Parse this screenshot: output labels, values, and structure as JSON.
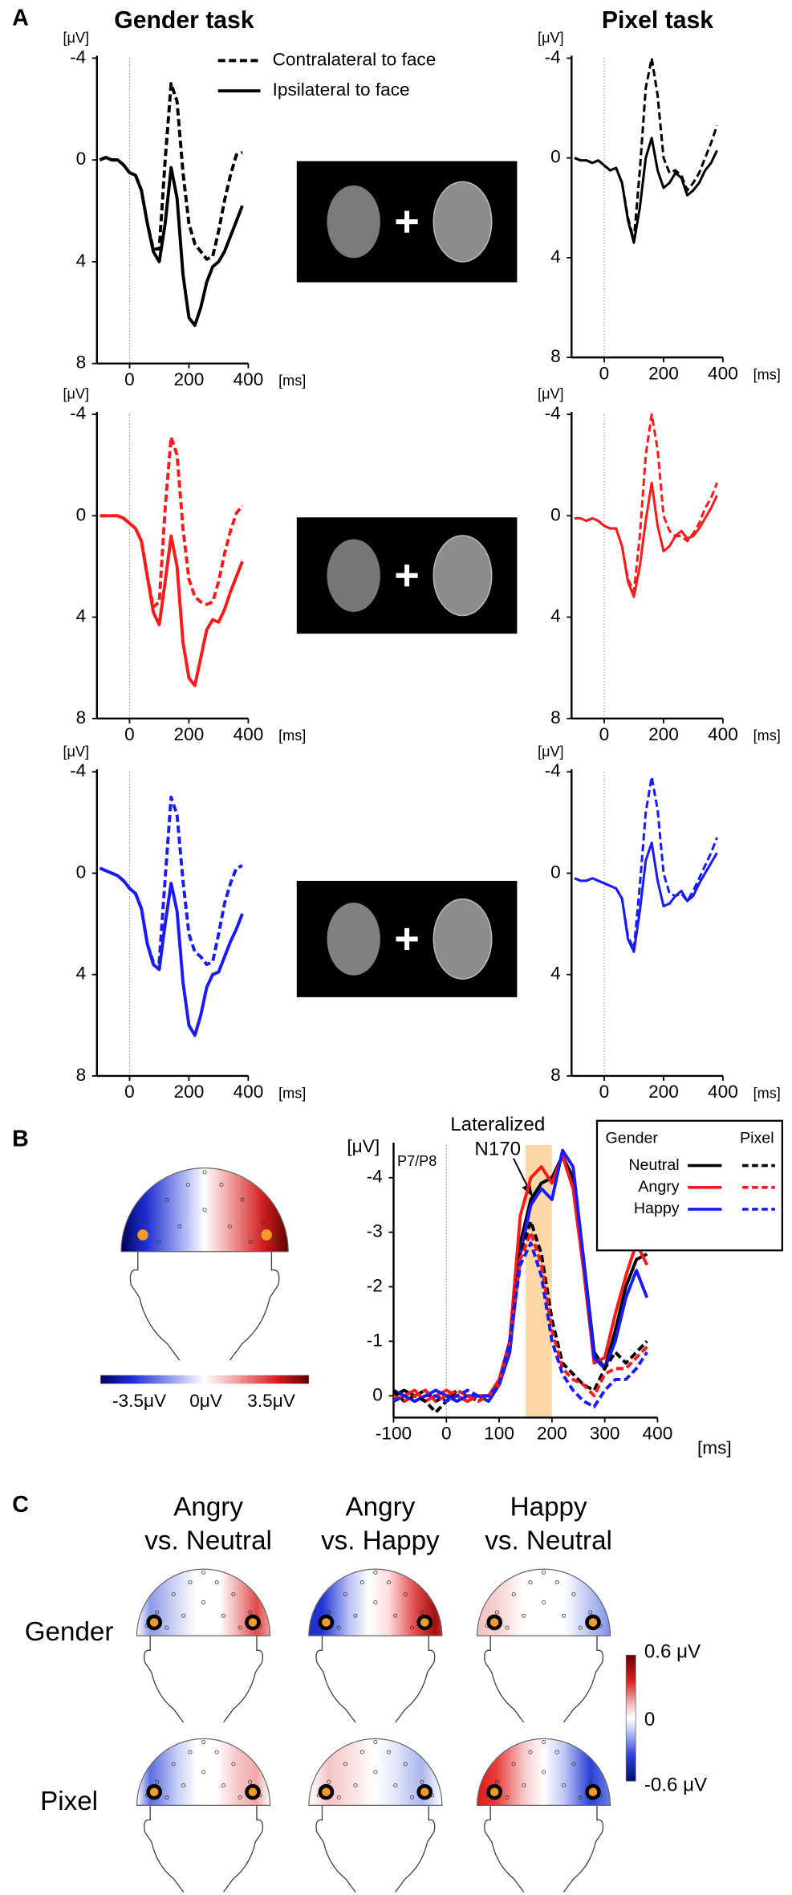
{
  "figure": {
    "panel_labels": [
      "A",
      "B",
      "C"
    ],
    "column_titles": [
      "Gender task",
      "Pixel task"
    ]
  },
  "chart_data": [
    {
      "type": "line",
      "y_label": "[μV]",
      "x_label": "[ms]",
      "y_inverted": true,
      "zero_line": true,
      "x": [
        -100,
        -80,
        -60,
        -40,
        -20,
        0,
        20,
        40,
        60,
        80,
        100,
        120,
        140,
        160,
        180,
        200,
        220,
        240,
        260,
        280,
        300,
        320,
        340,
        360,
        380
      ],
      "xlim": [
        -110,
        400
      ],
      "xticks": [
        0,
        200,
        400
      ],
      "ylim": [
        -4,
        8
      ],
      "yticks": [
        -4,
        0,
        4,
        8
      ],
      "series": [
        {
          "name": "Contralateral to face",
          "color": "#000000",
          "style": "dashed",
          "values": [
            0,
            -0.1,
            0,
            0,
            0.2,
            0.5,
            0.6,
            1.2,
            2.5,
            3.5,
            3.5,
            0,
            -3,
            -2.3,
            0.5,
            2.5,
            3.3,
            3.6,
            3.9,
            3.8,
            2.8,
            1.6,
            0.6,
            -0.2,
            -0.3
          ]
        },
        {
          "name": "Ipsilateral to face",
          "color": "#000000",
          "style": "solid",
          "values": [
            0,
            -0.1,
            0,
            0,
            0.2,
            0.5,
            0.6,
            1.2,
            2.5,
            3.6,
            4,
            2.5,
            0.3,
            1.5,
            4.5,
            6.2,
            6.5,
            5.8,
            4.8,
            4.2,
            4,
            3.6,
            3,
            2.4,
            1.8
          ]
        }
      ]
    },
    {
      "type": "line",
      "y_label": "[μV]",
      "x_label": "[ms]",
      "y_inverted": true,
      "zero_line": true,
      "x": [
        -100,
        -80,
        -60,
        -40,
        -20,
        0,
        20,
        40,
        60,
        80,
        100,
        120,
        140,
        160,
        180,
        200,
        220,
        240,
        260,
        280,
        300,
        320,
        340,
        360,
        380
      ],
      "xlim": [
        -110,
        400
      ],
      "xticks": [
        0,
        200,
        400
      ],
      "ylim": [
        -4,
        8
      ],
      "yticks": [
        -4,
        0,
        4,
        8
      ],
      "series": [
        {
          "color": "#000000",
          "style": "dashed",
          "values": [
            0,
            0.1,
            0.1,
            0.2,
            0.1,
            0.3,
            0.5,
            0.4,
            1,
            2.4,
            3.3,
            0.5,
            -2.8,
            -4,
            -2.5,
            0,
            0.6,
            0.5,
            0.7,
            1.3,
            1,
            0.6,
            0,
            -0.6,
            -1.3
          ]
        },
        {
          "color": "#000000",
          "style": "solid",
          "values": [
            0,
            0.1,
            0.1,
            0.2,
            0.1,
            0.3,
            0.5,
            0.4,
            1,
            2.5,
            3.4,
            2,
            0,
            -0.8,
            0.5,
            1.2,
            1,
            0.6,
            0.8,
            1.5,
            1.3,
            1,
            0.5,
            0.2,
            -0.3
          ]
        }
      ]
    },
    {
      "type": "line",
      "y_label": "[μV]",
      "x_label": "[ms]",
      "y_inverted": true,
      "zero_line": true,
      "x": [
        -100,
        -80,
        -60,
        -40,
        -20,
        0,
        20,
        40,
        60,
        80,
        100,
        120,
        140,
        160,
        180,
        200,
        220,
        240,
        260,
        280,
        300,
        320,
        340,
        360,
        380
      ],
      "xlim": [
        -110,
        400
      ],
      "xticks": [
        0,
        200,
        400
      ],
      "ylim": [
        -4,
        8
      ],
      "yticks": [
        -4,
        0,
        4,
        8
      ],
      "series": [
        {
          "color": "#ff1a1a",
          "style": "dashed",
          "values": [
            0,
            0,
            0,
            0,
            0.1,
            0.3,
            0.5,
            1,
            2.4,
            3.6,
            3.4,
            -0.3,
            -3.1,
            -2.4,
            0.5,
            2.5,
            3.2,
            3.4,
            3.5,
            3.4,
            2.6,
            1.5,
            0.6,
            -0.1,
            -0.4
          ]
        },
        {
          "color": "#ff1a1a",
          "style": "solid",
          "values": [
            0,
            0,
            0,
            0,
            0.1,
            0.3,
            0.5,
            1,
            2.4,
            3.8,
            4.3,
            2.6,
            0.8,
            2,
            5,
            6.4,
            6.7,
            5.6,
            4.5,
            4.1,
            4.2,
            3.7,
            3,
            2.4,
            1.8
          ]
        }
      ]
    },
    {
      "type": "line",
      "y_label": "[μV]",
      "x_label": "[ms]",
      "y_inverted": true,
      "zero_line": true,
      "x": [
        -100,
        -80,
        -60,
        -40,
        -20,
        0,
        20,
        40,
        60,
        80,
        100,
        120,
        140,
        160,
        180,
        200,
        220,
        240,
        260,
        280,
        300,
        320,
        340,
        360,
        380
      ],
      "xlim": [
        -110,
        400
      ],
      "xticks": [
        0,
        200,
        400
      ],
      "ylim": [
        -4,
        8
      ],
      "yticks": [
        -4,
        0,
        4,
        8
      ],
      "series": [
        {
          "color": "#ff1a1a",
          "style": "dashed",
          "values": [
            0.1,
            0.1,
            0.2,
            0.1,
            0.2,
            0.4,
            0.5,
            0.5,
            1.2,
            2.5,
            3,
            0.8,
            -2.4,
            -4,
            -2.6,
            0,
            0.6,
            0.8,
            0.8,
            1,
            0.7,
            0.3,
            -0.3,
            -0.7,
            -1.3
          ]
        },
        {
          "color": "#ff1a1a",
          "style": "solid",
          "values": [
            0.1,
            0.1,
            0.2,
            0.1,
            0.2,
            0.4,
            0.5,
            0.5,
            1.2,
            2.6,
            3.2,
            2,
            0.2,
            -1.3,
            0.4,
            1.4,
            1.2,
            0.8,
            0.6,
            0.9,
            0.8,
            0.5,
            0.1,
            -0.3,
            -0.8
          ]
        }
      ]
    },
    {
      "type": "line",
      "y_label": "[μV]",
      "x_label": "[ms]",
      "y_inverted": true,
      "zero_line": true,
      "x": [
        -100,
        -80,
        -60,
        -40,
        -20,
        0,
        20,
        40,
        60,
        80,
        100,
        120,
        140,
        160,
        180,
        200,
        220,
        240,
        260,
        280,
        300,
        320,
        340,
        360,
        380
      ],
      "xlim": [
        -110,
        400
      ],
      "xticks": [
        0,
        200,
        400
      ],
      "ylim": [
        -4,
        8
      ],
      "yticks": [
        -4,
        0,
        4,
        8
      ],
      "series": [
        {
          "color": "#1a1aff",
          "style": "dashed",
          "values": [
            -0.2,
            -0.1,
            0,
            0.1,
            0.3,
            0.6,
            0.8,
            1.4,
            2.8,
            3.5,
            3.5,
            0.2,
            -3,
            -2.3,
            0.3,
            2.4,
            3.1,
            3.3,
            3.6,
            3.5,
            2.4,
            1.2,
            0.4,
            -0.2,
            -0.3
          ]
        },
        {
          "color": "#1a1aff",
          "style": "solid",
          "values": [
            -0.2,
            -0.1,
            0,
            0.1,
            0.3,
            0.6,
            0.8,
            1.4,
            2.8,
            3.6,
            3.8,
            2,
            0.4,
            1.5,
            4.3,
            6,
            6.4,
            5.6,
            4.5,
            4,
            3.9,
            3.3,
            2.7,
            2.2,
            1.6
          ]
        }
      ]
    },
    {
      "type": "line",
      "y_label": "[μV]",
      "x_label": "[ms]",
      "y_inverted": true,
      "zero_line": true,
      "x": [
        -100,
        -80,
        -60,
        -40,
        -20,
        0,
        20,
        40,
        60,
        80,
        100,
        120,
        140,
        160,
        180,
        200,
        220,
        240,
        260,
        280,
        300,
        320,
        340,
        360,
        380
      ],
      "xlim": [
        -110,
        400
      ],
      "xticks": [
        0,
        200,
        400
      ],
      "ylim": [
        -4,
        8
      ],
      "yticks": [
        -4,
        0,
        4,
        8
      ],
      "series": [
        {
          "color": "#1a1aff",
          "style": "dashed",
          "values": [
            0.2,
            0.3,
            0.3,
            0.2,
            0.3,
            0.4,
            0.5,
            0.6,
            1,
            2.5,
            3,
            0.5,
            -2.4,
            -3.8,
            -2.5,
            0,
            0.8,
            0.9,
            0.8,
            1.1,
            0.7,
            0.2,
            -0.3,
            -0.8,
            -1.4
          ]
        },
        {
          "color": "#1a1aff",
          "style": "solid",
          "values": [
            0.2,
            0.3,
            0.3,
            0.2,
            0.3,
            0.4,
            0.5,
            0.6,
            1,
            2.6,
            3.1,
            1.5,
            -0.5,
            -1.2,
            0.3,
            1.3,
            1.2,
            0.9,
            0.7,
            1.1,
            0.9,
            0.4,
            0,
            -0.4,
            -0.8
          ]
        }
      ]
    },
    {
      "type": "line",
      "y_label": "[μV]",
      "x_label": "[ms]",
      "y_inverted": true,
      "zero_line": true,
      "channel_label": "P7/P8",
      "annotation_lines": [
        "Lateralized",
        "N170"
      ],
      "highlight_x": [
        150,
        200
      ],
      "legend_headers": [
        "Gender",
        "Pixel"
      ],
      "x": [
        -100,
        -80,
        -60,
        -40,
        -20,
        0,
        20,
        40,
        60,
        80,
        100,
        120,
        140,
        160,
        180,
        200,
        220,
        240,
        260,
        280,
        300,
        320,
        340,
        360,
        380
      ],
      "xlim": [
        -100,
        400
      ],
      "xticks": [
        -100,
        0,
        100,
        200,
        300,
        400
      ],
      "ylim": [
        -4.6,
        0.4
      ],
      "yticks": [
        -4,
        -3,
        -2,
        -1,
        0
      ],
      "series": [
        {
          "name": "Neutral",
          "color": "#000000",
          "style": "solid",
          "values": [
            0,
            -0.1,
            0,
            -0.1,
            0.1,
            0,
            0,
            0.1,
            0,
            0,
            -0.2,
            -0.8,
            -2.8,
            -3.6,
            -3.9,
            -4,
            -4.4,
            -4,
            -2.5,
            -0.8,
            -0.5,
            -1.2,
            -2,
            -2.5,
            -2.6
          ]
        },
        {
          "name": "Angry",
          "color": "#ff1a1a",
          "style": "solid",
          "values": [
            0.1,
            0,
            -0.1,
            0.1,
            0,
            -0.1,
            0,
            0.1,
            0,
            0,
            -0.3,
            -1,
            -3.3,
            -4,
            -4.2,
            -3.9,
            -4.4,
            -3.8,
            -2.3,
            -0.6,
            -0.7,
            -1.5,
            -2.2,
            -2.8,
            -2.4
          ]
        },
        {
          "name": "Happy",
          "color": "#1a1aff",
          "style": "solid",
          "values": [
            -0.1,
            0,
            0.1,
            0,
            -0.1,
            0,
            0.1,
            0,
            0,
            0.1,
            -0.2,
            -0.8,
            -2.6,
            -3.5,
            -3.8,
            -3.6,
            -4.5,
            -4.2,
            -2.5,
            -0.7,
            -0.5,
            -1,
            -1.8,
            -2.3,
            -1.8
          ]
        },
        {
          "name": "Neutral",
          "color": "#000000",
          "style": "dashed",
          "values": [
            -0.1,
            0.1,
            0,
            0.1,
            0.3,
            0.1,
            -0.1,
            0,
            0.1,
            0,
            -0.2,
            -1,
            -2.6,
            -3.2,
            -2.6,
            -1.4,
            -0.6,
            -0.4,
            -0.2,
            -0.1,
            -0.5,
            -0.8,
            -0.6,
            -0.8,
            -1
          ]
        },
        {
          "name": "Angry",
          "color": "#ff1a1a",
          "style": "dashed",
          "values": [
            0,
            0.1,
            0,
            -0.1,
            0.1,
            0,
            -0.1,
            0,
            0.1,
            0,
            -0.2,
            -1,
            -2.5,
            -3,
            -2.4,
            -1.2,
            -0.5,
            -0.3,
            -0.2,
            0,
            -0.4,
            -0.5,
            -0.5,
            -0.7,
            -0.9
          ]
        },
        {
          "name": "Happy",
          "color": "#1a1aff",
          "style": "dashed",
          "values": [
            0.1,
            0,
            0.1,
            0,
            0,
            0.1,
            0,
            -0.1,
            0,
            0,
            -0.2,
            -1,
            -2.4,
            -2.8,
            -2.2,
            -1,
            -0.4,
            -0.1,
            0.1,
            0.2,
            -0.1,
            -0.3,
            -0.3,
            -0.5,
            -0.8
          ]
        }
      ]
    }
  ],
  "topomaps": {
    "b_colorbar_labels": [
      "-3.5μV",
      "0μV",
      "3.5μV"
    ],
    "c_column_titles": [
      [
        "Angry",
        "vs. Neutral"
      ],
      [
        "Angry",
        "vs. Happy"
      ],
      [
        "Happy",
        "vs. Neutral"
      ]
    ],
    "c_row_labels": [
      "Gender",
      "Pixel"
    ],
    "c_colorbar_labels": [
      "0.6 μV",
      "0",
      "-0.6 μV"
    ]
  }
}
